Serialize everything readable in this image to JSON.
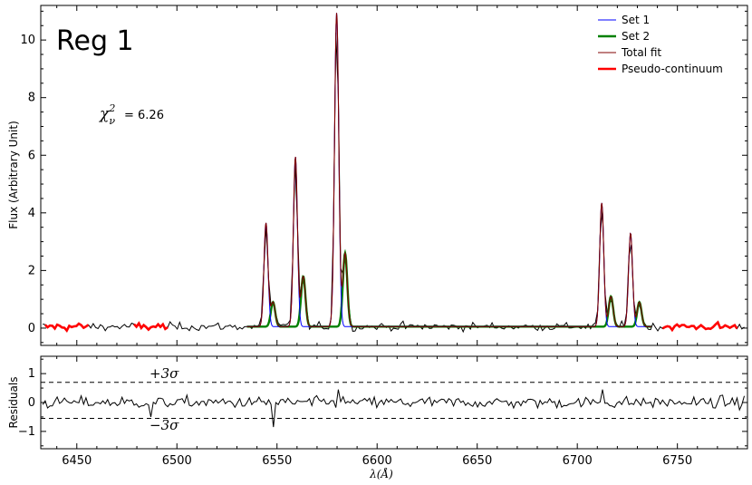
{
  "chart_data": [
    {
      "type": "line",
      "panel": "main",
      "region_label": "Reg 1",
      "chi_label": "χ²ν = 6.26",
      "chi_symbol": "χ",
      "chi_super": "2",
      "chi_sub": "ν",
      "chi_value": "= 6.26",
      "ylabel": "Flux (Arbitrary Unit)",
      "xlim": [
        6432,
        6785
      ],
      "ylim": [
        -0.6,
        11.2
      ],
      "yticks": [
        0,
        2,
        4,
        6,
        8,
        10
      ],
      "ytick_labels": [
        "0",
        "2",
        "4",
        "6",
        "8",
        "10"
      ],
      "legend_position": "top-right",
      "legend": [
        {
          "name": "Set 1",
          "color": "#0000ff"
        },
        {
          "name": "Set 2",
          "color": "#008000"
        },
        {
          "name": "Total fit",
          "color": "#800000"
        },
        {
          "name": "Pseudo-continuum",
          "color": "#ff0000"
        }
      ],
      "continuum": 0.05,
      "fit_range": [
        6535,
        6737
      ],
      "pseudo_continuum_ranges": [
        [
          6434,
          6456
        ],
        [
          6478,
          6496
        ],
        [
          6742,
          6780
        ]
      ],
      "set1_lines": [
        {
          "center": 6544.5,
          "amp": 3.6,
          "sigma": 1.0
        },
        {
          "center": 6559.2,
          "amp": 5.9,
          "sigma": 1.0
        },
        {
          "center": 6579.8,
          "amp": 10.9,
          "sigma": 1.05
        },
        {
          "center": 6712.2,
          "amp": 4.3,
          "sigma": 1.0
        },
        {
          "center": 6726.6,
          "amp": 3.25,
          "sigma": 1.0
        }
      ],
      "set2_lines": [
        {
          "center": 6548.0,
          "amp": 0.85,
          "sigma": 1.1
        },
        {
          "center": 6563.1,
          "amp": 1.75,
          "sigma": 1.1
        },
        {
          "center": 6584.0,
          "amp": 2.55,
          "sigma": 1.1
        },
        {
          "center": 6716.8,
          "amp": 1.05,
          "sigma": 1.1
        },
        {
          "center": 6731.0,
          "amp": 0.85,
          "sigma": 1.1
        }
      ],
      "data_noise": 0.18,
      "data_step": 1.2
    },
    {
      "type": "line",
      "panel": "residuals",
      "ylabel": "Residuals",
      "xlabel": "λ (Å)",
      "xlabel_symbol": "λ",
      "xlabel_unit": "(Å)",
      "xlim": [
        6432,
        6785
      ],
      "ylim": [
        -1.6,
        1.6
      ],
      "yticks": [
        -1,
        0,
        1
      ],
      "ytick_labels": [
        "−1",
        "0",
        "1"
      ],
      "xticks": [
        6450,
        6500,
        6550,
        6600,
        6650,
        6700,
        6750
      ],
      "xtick_labels": [
        "6450",
        "6500",
        "6550",
        "6600",
        "6650",
        "6700",
        "6750"
      ],
      "plus_sigma_level": 0.7,
      "minus_sigma_level": -0.55,
      "plus_sigma_label": "+3σ",
      "minus_sigma_label": "−3σ",
      "residual_noise": 0.2,
      "residual_spikes": [
        {
          "x": 6548,
          "y": -0.85
        },
        {
          "x": 6487,
          "y": -0.5
        },
        {
          "x": 6580,
          "y": 0.45
        },
        {
          "x": 6712,
          "y": 0.45
        }
      ]
    }
  ]
}
